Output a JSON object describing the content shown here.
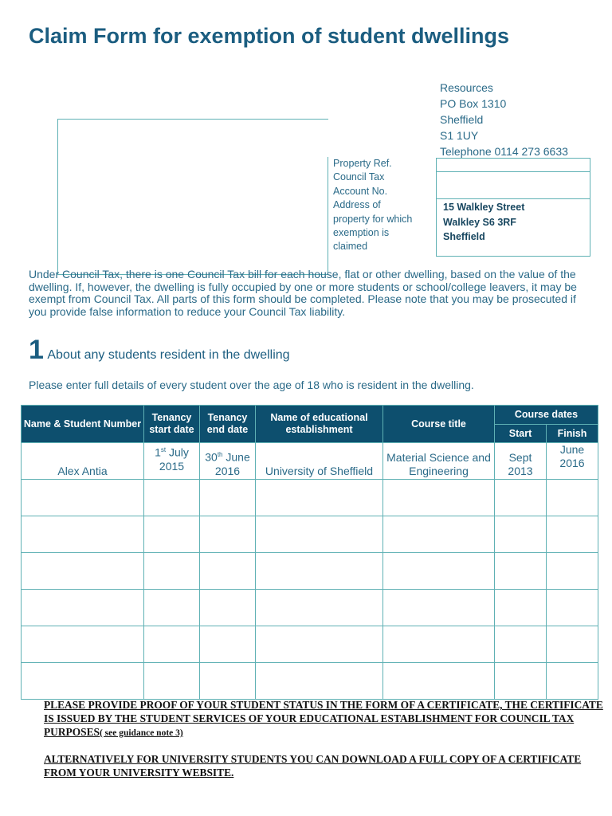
{
  "title": "Claim Form for exemption of student dwellings",
  "address": {
    "lines": [
      "Resources",
      "PO Box 1310",
      "Sheffield",
      "S1 1UY",
      "Telephone 0114 273 6633"
    ]
  },
  "property": {
    "labels": [
      "Property Ref.",
      "Council Tax",
      "Account No.",
      "Address of",
      "property for which",
      "exemption is",
      "claimed"
    ],
    "property_ref": "",
    "account_no": "",
    "address_lines": [
      "15 Walkley Street",
      "Walkley S6 3RF",
      "Sheffield"
    ]
  },
  "intro": "Under Council Tax, there is one Council Tax bill for each house, flat or other dwelling, based on the value of the dwelling. If, however, the dwelling is fully occupied by one or more students or school/college leavers, it may be exempt from Council Tax. All parts of this form should be completed. Please note that you may be prosecuted if you provide false information to reduce your Council Tax liability.",
  "section1": {
    "number": "1",
    "title": "About any students resident in the dwelling",
    "instruction": "Please enter full details of every student over the age of 18 who is resident in the dwelling."
  },
  "table": {
    "headers": {
      "name": "Name & Student Number",
      "start": "Tenancy start date",
      "end": "Tenancy end date",
      "establishment": "Name of educational establishment",
      "course": "Course title",
      "course_dates": "Course dates",
      "course_start": "Start",
      "course_finish": "Finish"
    },
    "rows": [
      {
        "name": "Alex Antia",
        "start_day": "1",
        "start_sup": "st",
        "start_rest": "July 2015",
        "end_day": "30",
        "end_sup": "th",
        "end_rest": "June 2016",
        "establishment": "University of Sheffield",
        "course": "Material Science and Engineering",
        "course_start": "Sept 2013",
        "course_finish": "June 2016"
      },
      {},
      {},
      {},
      {},
      {},
      {}
    ]
  },
  "notes": {
    "p1": "PLEASE PROVIDE PROOF OF YOUR STUDENT STATUS IN THE FORM OF A CERTIFICATE, THE CERTIFICATE IS ISSUED BY THE STUDENT SERVICES OF YOUR EDUCATIONAL ESTABLISHMENT FOR COUNCIL TAX PURPOSES",
    "p1_ref": "( see guidance note 3)",
    "p2": "ALTERNATIVELY FOR UNIVERSITY STUDENTS YOU CAN DOWNLOAD A FULL COPY OF A CERTIFICATE FROM YOUR UNIVERSITY WEBSITE."
  }
}
